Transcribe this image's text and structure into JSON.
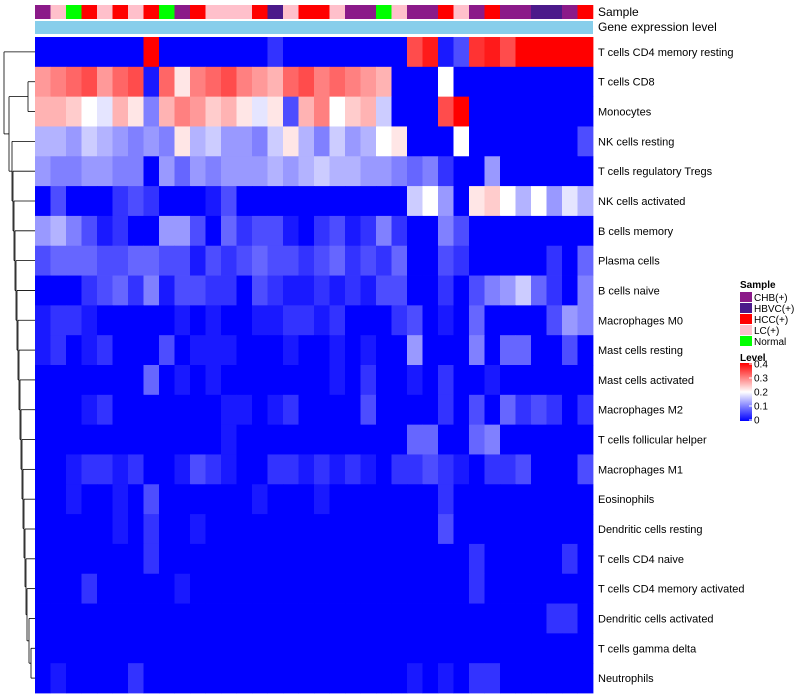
{
  "chart_data": {
    "type": "heatmap",
    "title": "",
    "annotation_tracks": [
      "Sample",
      "Gene expression level"
    ],
    "column_samples": [
      "CHB(+)",
      "LC(+)",
      "Normal",
      "HCC(+)",
      "LC(+)",
      "HCC(+)",
      "LC(+)",
      "HCC(+)",
      "Normal",
      "CHB(+)",
      "HCC(+)",
      "LC(+)",
      "LC(+)",
      "LC(+)",
      "HCC(+)",
      "HBVC(+)",
      "LC(+)",
      "HCC(+)",
      "HCC(+)",
      "LC(+)",
      "CHB(+)",
      "CHB(+)",
      "Normal",
      "LC(+)",
      "CHB(+)",
      "CHB(+)",
      "HCC(+)",
      "LC(+)",
      "CHB(+)",
      "HCC(+)",
      "CHB(+)",
      "CHB(+)",
      "HBVC(+)",
      "HBVC(+)",
      "CHB(+)",
      "HCC(+)"
    ],
    "rows": [
      "T cells CD4 memory resting",
      "T cells CD8",
      "Monocytes",
      "NK cells resting",
      "T cells regulatory  Tregs",
      "NK cells activated",
      "B cells memory",
      "Plasma cells",
      "B cells naive",
      "Macrophages M0",
      "Mast cells resting",
      "Mast cells activated",
      "Macrophages M2",
      "T cells follicular helper",
      "Macrophages M1",
      "Eosinophils",
      "Dendritic cells resting",
      "T cells CD4 naive",
      "T cells CD4 memory activated",
      "Dendritic cells activated",
      "T cells gamma delta",
      "Neutrophils"
    ],
    "values": [
      [
        0.0,
        0.0,
        0.0,
        0.0,
        0.0,
        0.0,
        0.0,
        0.4,
        0.0,
        0.0,
        0.0,
        0.0,
        0.0,
        0.0,
        0.0,
        0.04,
        0.0,
        0.0,
        0.0,
        0.0,
        0.0,
        0.0,
        0.0,
        0.0,
        0.34,
        0.38,
        0.02,
        0.06,
        0.36,
        0.38,
        0.34,
        0.4,
        0.4,
        0.4,
        0.4,
        0.4
      ],
      [
        0.28,
        0.3,
        0.32,
        0.34,
        0.28,
        0.32,
        0.34,
        0.02,
        0.32,
        0.22,
        0.3,
        0.32,
        0.34,
        0.3,
        0.28,
        0.26,
        0.32,
        0.34,
        0.3,
        0.32,
        0.3,
        0.28,
        0.26,
        0.0,
        0.0,
        0.0,
        0.2,
        0.0,
        0.0,
        0.0,
        0.0,
        0.0,
        0.0,
        0.0,
        0.0,
        0.0
      ],
      [
        0.26,
        0.26,
        0.24,
        0.2,
        0.18,
        0.26,
        0.22,
        0.1,
        0.26,
        0.3,
        0.28,
        0.24,
        0.26,
        0.22,
        0.18,
        0.22,
        0.06,
        0.26,
        0.3,
        0.2,
        0.24,
        0.26,
        0.16,
        0.0,
        0.0,
        0.0,
        0.34,
        0.42,
        0.0,
        0.0,
        0.0,
        0.0,
        0.0,
        0.0,
        0.0,
        0.0
      ],
      [
        0.14,
        0.14,
        0.12,
        0.16,
        0.14,
        0.12,
        0.1,
        0.12,
        0.1,
        0.22,
        0.14,
        0.16,
        0.12,
        0.12,
        0.1,
        0.16,
        0.22,
        0.14,
        0.1,
        0.16,
        0.12,
        0.14,
        0.2,
        0.22,
        0.0,
        0.0,
        0.0,
        0.2,
        0.0,
        0.0,
        0.0,
        0.0,
        0.0,
        0.0,
        0.0,
        0.06
      ],
      [
        0.12,
        0.1,
        0.1,
        0.12,
        0.12,
        0.1,
        0.1,
        0.0,
        0.12,
        0.08,
        0.12,
        0.1,
        0.12,
        0.12,
        0.12,
        0.14,
        0.12,
        0.14,
        0.16,
        0.14,
        0.14,
        0.12,
        0.12,
        0.1,
        0.08,
        0.1,
        0.04,
        0.0,
        0.0,
        0.12,
        0.0,
        0.0,
        0.0,
        0.0,
        0.0,
        0.0
      ],
      [
        0.0,
        0.06,
        0.0,
        0.0,
        0.0,
        0.04,
        0.06,
        0.04,
        0.0,
        0.0,
        0.0,
        0.02,
        0.06,
        0.0,
        0.0,
        0.0,
        0.0,
        0.0,
        0.0,
        0.0,
        0.0,
        0.0,
        0.0,
        0.0,
        0.16,
        0.2,
        0.12,
        0.0,
        0.22,
        0.24,
        0.2,
        0.14,
        0.2,
        0.12,
        0.18,
        0.14
      ],
      [
        0.12,
        0.14,
        0.1,
        0.06,
        0.02,
        0.04,
        0.0,
        0.0,
        0.12,
        0.12,
        0.06,
        0.0,
        0.08,
        0.04,
        0.06,
        0.06,
        0.02,
        0.0,
        0.04,
        0.06,
        0.02,
        0.04,
        0.1,
        0.04,
        0.0,
        0.0,
        0.1,
        0.06,
        0.0,
        0.0,
        0.0,
        0.0,
        0.0,
        0.0,
        0.0,
        0.0
      ],
      [
        0.06,
        0.08,
        0.08,
        0.08,
        0.06,
        0.06,
        0.08,
        0.08,
        0.06,
        0.06,
        0.02,
        0.06,
        0.04,
        0.06,
        0.08,
        0.06,
        0.06,
        0.04,
        0.06,
        0.08,
        0.04,
        0.06,
        0.04,
        0.08,
        0.0,
        0.0,
        0.06,
        0.04,
        0.0,
        0.0,
        0.0,
        0.0,
        0.0,
        0.04,
        0.0,
        0.08
      ],
      [
        0.0,
        0.0,
        0.0,
        0.04,
        0.06,
        0.08,
        0.04,
        0.1,
        0.02,
        0.06,
        0.06,
        0.04,
        0.04,
        0.0,
        0.06,
        0.04,
        0.02,
        0.02,
        0.04,
        0.02,
        0.04,
        0.02,
        0.06,
        0.06,
        0.0,
        0.0,
        0.04,
        0.0,
        0.06,
        0.1,
        0.12,
        0.16,
        0.08,
        0.04,
        0.0,
        0.1
      ],
      [
        0.02,
        0.04,
        0.04,
        0.02,
        0.0,
        0.0,
        0.0,
        0.0,
        0.0,
        0.02,
        0.0,
        0.02,
        0.0,
        0.0,
        0.02,
        0.02,
        0.04,
        0.04,
        0.02,
        0.04,
        0.0,
        0.0,
        0.0,
        0.04,
        0.06,
        0.0,
        0.02,
        0.0,
        0.08,
        0.0,
        0.0,
        0.0,
        0.0,
        0.06,
        0.12,
        0.1
      ],
      [
        0.02,
        0.04,
        0.0,
        0.02,
        0.04,
        0.0,
        0.0,
        0.0,
        0.06,
        0.0,
        0.02,
        0.02,
        0.02,
        0.0,
        0.0,
        0.0,
        0.02,
        0.0,
        0.0,
        0.02,
        0.0,
        0.02,
        0.0,
        0.0,
        0.12,
        0.0,
        0.0,
        0.0,
        0.1,
        0.0,
        0.08,
        0.08,
        0.0,
        0.0,
        0.06,
        0.0
      ],
      [
        0.0,
        0.0,
        0.0,
        0.0,
        0.0,
        0.0,
        0.0,
        0.08,
        0.0,
        0.02,
        0.0,
        0.02,
        0.0,
        0.0,
        0.0,
        0.0,
        0.0,
        0.0,
        0.0,
        0.02,
        0.0,
        0.04,
        0.0,
        0.0,
        0.02,
        0.0,
        0.04,
        0.0,
        0.0,
        0.02,
        0.0,
        0.0,
        0.0,
        0.0,
        0.0,
        0.0
      ],
      [
        0.0,
        0.0,
        0.0,
        0.02,
        0.04,
        0.0,
        0.0,
        0.0,
        0.0,
        0.0,
        0.0,
        0.0,
        0.02,
        0.02,
        0.0,
        0.02,
        0.04,
        0.0,
        0.0,
        0.0,
        0.0,
        0.06,
        0.0,
        0.0,
        0.0,
        0.0,
        0.04,
        0.0,
        0.06,
        0.0,
        0.08,
        0.04,
        0.06,
        0.04,
        0.0,
        0.04
      ],
      [
        0.0,
        0.0,
        0.0,
        0.0,
        0.0,
        0.0,
        0.0,
        0.0,
        0.0,
        0.0,
        0.0,
        0.0,
        0.02,
        0.0,
        0.0,
        0.0,
        0.0,
        0.0,
        0.0,
        0.0,
        0.0,
        0.0,
        0.0,
        0.0,
        0.08,
        0.08,
        0.0,
        0.0,
        0.08,
        0.1,
        0.0,
        0.0,
        0.0,
        0.0,
        0.0,
        0.0
      ],
      [
        0.0,
        0.0,
        0.02,
        0.04,
        0.04,
        0.02,
        0.04,
        0.0,
        0.0,
        0.02,
        0.06,
        0.04,
        0.02,
        0.0,
        0.0,
        0.04,
        0.04,
        0.02,
        0.04,
        0.02,
        0.04,
        0.02,
        0.0,
        0.04,
        0.04,
        0.06,
        0.04,
        0.02,
        0.0,
        0.04,
        0.04,
        0.06,
        0.0,
        0.0,
        0.0,
        0.06
      ],
      [
        0.0,
        0.0,
        0.02,
        0.0,
        0.0,
        0.02,
        0.0,
        0.06,
        0.0,
        0.0,
        0.0,
        0.0,
        0.0,
        0.0,
        0.02,
        0.0,
        0.0,
        0.0,
        0.02,
        0.0,
        0.0,
        0.0,
        0.0,
        0.0,
        0.0,
        0.0,
        0.04,
        0.0,
        0.0,
        0.0,
        0.0,
        0.0,
        0.0,
        0.0,
        0.0,
        0.0
      ],
      [
        0.0,
        0.0,
        0.0,
        0.0,
        0.0,
        0.02,
        0.0,
        0.04,
        0.0,
        0.0,
        0.02,
        0.0,
        0.0,
        0.0,
        0.0,
        0.0,
        0.0,
        0.0,
        0.0,
        0.0,
        0.0,
        0.0,
        0.0,
        0.0,
        0.0,
        0.0,
        0.06,
        0.0,
        0.0,
        0.0,
        0.0,
        0.0,
        0.0,
        0.0,
        0.0,
        0.0
      ],
      [
        0.0,
        0.0,
        0.0,
        0.0,
        0.0,
        0.0,
        0.0,
        0.04,
        0.0,
        0.0,
        0.0,
        0.0,
        0.0,
        0.0,
        0.0,
        0.0,
        0.0,
        0.0,
        0.0,
        0.0,
        0.0,
        0.0,
        0.0,
        0.0,
        0.0,
        0.0,
        0.0,
        0.0,
        0.04,
        0.0,
        0.0,
        0.0,
        0.0,
        0.0,
        0.04,
        0.0
      ],
      [
        0.0,
        0.0,
        0.0,
        0.04,
        0.0,
        0.0,
        0.0,
        0.0,
        0.0,
        0.02,
        0.0,
        0.0,
        0.0,
        0.0,
        0.0,
        0.0,
        0.0,
        0.0,
        0.0,
        0.0,
        0.0,
        0.0,
        0.0,
        0.0,
        0.0,
        0.0,
        0.0,
        0.0,
        0.04,
        0.0,
        0.0,
        0.0,
        0.0,
        0.0,
        0.0,
        0.0
      ],
      [
        0.0,
        0.0,
        0.0,
        0.0,
        0.0,
        0.0,
        0.0,
        0.0,
        0.0,
        0.0,
        0.0,
        0.0,
        0.0,
        0.0,
        0.0,
        0.0,
        0.0,
        0.0,
        0.0,
        0.0,
        0.0,
        0.0,
        0.0,
        0.0,
        0.0,
        0.0,
        0.0,
        0.0,
        0.0,
        0.0,
        0.0,
        0.0,
        0.0,
        0.04,
        0.04,
        0.0
      ],
      [
        0.0,
        0.0,
        0.0,
        0.0,
        0.0,
        0.0,
        0.0,
        0.0,
        0.0,
        0.0,
        0.0,
        0.0,
        0.0,
        0.0,
        0.0,
        0.0,
        0.0,
        0.0,
        0.0,
        0.0,
        0.0,
        0.0,
        0.0,
        0.0,
        0.0,
        0.0,
        0.0,
        0.0,
        0.0,
        0.0,
        0.0,
        0.0,
        0.0,
        0.0,
        0.0,
        0.0
      ],
      [
        0.0,
        0.02,
        0.0,
        0.0,
        0.0,
        0.0,
        0.04,
        0.0,
        0.0,
        0.0,
        0.0,
        0.0,
        0.0,
        0.0,
        0.0,
        0.0,
        0.0,
        0.0,
        0.0,
        0.0,
        0.0,
        0.0,
        0.0,
        0.0,
        0.02,
        0.0,
        0.02,
        0.0,
        0.04,
        0.04,
        0.0,
        0.0,
        0.0,
        0.0,
        0.0,
        0.0
      ]
    ],
    "legend": {
      "sample_title": "Sample",
      "sample_entries": [
        {
          "label": "CHB(+)",
          "color": "#8b1a89"
        },
        {
          "label": "HBVC(+)",
          "color": "#4b1a8a"
        },
        {
          "label": "HCC(+)",
          "color": "#ff0000"
        },
        {
          "label": "LC(+)",
          "color": "#ffc0cb"
        },
        {
          "label": "Normal",
          "color": "#00ff00"
        }
      ],
      "level_title": "Level",
      "level_ticks": [
        "0.4",
        "0.3",
        "0.2",
        "0.1",
        "0"
      ],
      "level_range": [
        0,
        0.4
      ]
    },
    "gene_expression_track_color": "#87ceeb",
    "colorscale": {
      "low": "#0000ff",
      "mid": "#ffffff",
      "high": "#ff0000",
      "midpoint": 0.2
    }
  }
}
